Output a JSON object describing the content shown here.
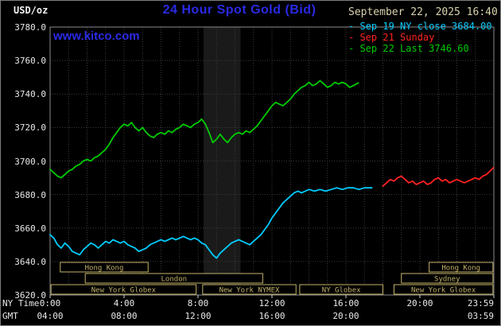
{
  "header": {
    "units_label": "USD/oz",
    "title": "24 Hour Spot Gold (Bid)",
    "datetime": "September 22, 2025 16:40",
    "watermark": "www.kitco.com",
    "legend_dash": "-"
  },
  "axes": {
    "ny_time_label": "NY Time",
    "gmt_label": "GMT"
  },
  "colors": {
    "title_blue": "#2a2ae6",
    "kitco_blue": "#2a2ae6",
    "date_tan": "#d9d2ae",
    "session_tan": "#c3b269",
    "grid": "#3d3d3d",
    "plot_border": "#8c8c8c",
    "band": "#1a1a1a",
    "axis_text": "#e9e9e9",
    "tick": "#cfcfcf",
    "background": "#000000"
  },
  "chart_data": {
    "type": "line",
    "title": "24 Hour Spot Gold (Bid)",
    "ylabel": "USD/oz",
    "x_unit": "hours, NY Time",
    "xlim": [
      0,
      24
    ],
    "ylim": [
      3620,
      3780
    ],
    "grid": true,
    "legend_position": "top-right",
    "y_ticks": [
      {
        "value": 3780,
        "label": "3780.0"
      },
      {
        "value": 3760,
        "label": "3760.0"
      },
      {
        "value": 3740,
        "label": "3740.0"
      },
      {
        "value": 3720,
        "label": "3720.0"
      },
      {
        "value": 3700,
        "label": "3700.0"
      },
      {
        "value": 3680,
        "label": "3680.0"
      },
      {
        "value": 3660,
        "label": "3660.0"
      },
      {
        "value": 3640,
        "label": "3640.0"
      },
      {
        "value": 3620,
        "label": "3620.0"
      }
    ],
    "x_ticks": [
      {
        "hour": 0,
        "ny": "0:00",
        "gmt": "04:00"
      },
      {
        "hour": 4,
        "ny": "4:00",
        "gmt": "08:00"
      },
      {
        "hour": 8,
        "ny": "8:00",
        "gmt": "12:00"
      },
      {
        "hour": 12,
        "ny": "12:00",
        "gmt": "16:00"
      },
      {
        "hour": 16,
        "ny": "16:00",
        "gmt": "20:00"
      },
      {
        "hour": 20,
        "ny": "20:00",
        "gmt": null
      },
      {
        "hour": 24,
        "ny": "23:59",
        "gmt": "03:59"
      }
    ],
    "highlight_band": {
      "x0": 8.3,
      "x1": 10.3
    },
    "sessions": [
      {
        "row": 0,
        "label": "Hong Kong",
        "x0": 0.55,
        "x1": 5.3
      },
      {
        "row": 0,
        "label": "Hong Kong",
        "x0": 20.5,
        "x1": 23.95
      },
      {
        "row": 1,
        "label": "London",
        "x0": 1.9,
        "x1": 11.5
      },
      {
        "row": 1,
        "label": "Sydney",
        "x0": 19.0,
        "x1": 23.95
      },
      {
        "row": 2,
        "label": "New York Globex",
        "x0": 0.05,
        "x1": 7.9
      },
      {
        "row": 2,
        "label": "New York NYMEX",
        "x0": 8.25,
        "x1": 13.3
      },
      {
        "row": 2,
        "label": "NY Globex",
        "x0": 13.5,
        "x1": 18.0
      },
      {
        "row": 2,
        "label": "New York Globex",
        "x0": 18.6,
        "x1": 23.95
      }
    ],
    "series": [
      {
        "id": "sep19",
        "name": "Sep 19 NY close 3684.00",
        "color": "#00ccff",
        "close_value": 3684.0,
        "points": [
          [
            0,
            3656
          ],
          [
            0.2,
            3654
          ],
          [
            0.4,
            3650
          ],
          [
            0.6,
            3648
          ],
          [
            0.8,
            3651
          ],
          [
            1,
            3649
          ],
          [
            1.2,
            3646
          ],
          [
            1.4,
            3645
          ],
          [
            1.6,
            3644
          ],
          [
            1.8,
            3647
          ],
          [
            2,
            3649
          ],
          [
            2.2,
            3651
          ],
          [
            2.4,
            3650
          ],
          [
            2.6,
            3648
          ],
          [
            2.8,
            3650
          ],
          [
            3,
            3652
          ],
          [
            3.2,
            3651
          ],
          [
            3.4,
            3653
          ],
          [
            3.6,
            3652
          ],
          [
            3.8,
            3651
          ],
          [
            4,
            3652
          ],
          [
            4.2,
            3650
          ],
          [
            4.4,
            3649
          ],
          [
            4.6,
            3648
          ],
          [
            4.8,
            3646
          ],
          [
            5,
            3647
          ],
          [
            5.2,
            3648
          ],
          [
            5.4,
            3650
          ],
          [
            5.6,
            3651
          ],
          [
            5.8,
            3652
          ],
          [
            6,
            3653
          ],
          [
            6.2,
            3652
          ],
          [
            6.4,
            3653
          ],
          [
            6.6,
            3654
          ],
          [
            6.8,
            3653
          ],
          [
            7,
            3654
          ],
          [
            7.2,
            3655
          ],
          [
            7.4,
            3654
          ],
          [
            7.6,
            3653
          ],
          [
            7.8,
            3654
          ],
          [
            8,
            3653
          ],
          [
            8.2,
            3651
          ],
          [
            8.4,
            3650
          ],
          [
            8.6,
            3647
          ],
          [
            8.8,
            3644
          ],
          [
            9,
            3642
          ],
          [
            9.2,
            3645
          ],
          [
            9.4,
            3647
          ],
          [
            9.6,
            3649
          ],
          [
            9.8,
            3651
          ],
          [
            10,
            3652
          ],
          [
            10.2,
            3653
          ],
          [
            10.4,
            3652
          ],
          [
            10.6,
            3651
          ],
          [
            10.8,
            3650
          ],
          [
            11,
            3652
          ],
          [
            11.2,
            3654
          ],
          [
            11.4,
            3656
          ],
          [
            11.6,
            3659
          ],
          [
            11.8,
            3662
          ],
          [
            12,
            3666
          ],
          [
            12.2,
            3669
          ],
          [
            12.4,
            3672
          ],
          [
            12.6,
            3675
          ],
          [
            12.8,
            3677
          ],
          [
            13,
            3679
          ],
          [
            13.2,
            3681
          ],
          [
            13.4,
            3682
          ],
          [
            13.6,
            3681
          ],
          [
            13.8,
            3682
          ],
          [
            14,
            3683
          ],
          [
            14.3,
            3682
          ],
          [
            14.6,
            3683
          ],
          [
            14.9,
            3682
          ],
          [
            15.2,
            3683
          ],
          [
            15.5,
            3684
          ],
          [
            15.8,
            3683
          ],
          [
            16.1,
            3684
          ],
          [
            16.4,
            3684
          ],
          [
            16.7,
            3683
          ],
          [
            17,
            3684
          ],
          [
            17.4,
            3684
          ]
        ]
      },
      {
        "id": "sep21",
        "name": "Sep 21 Sunday",
        "color": "#ff2222",
        "points": [
          [
            18,
            3685
          ],
          [
            18.2,
            3687
          ],
          [
            18.4,
            3689
          ],
          [
            18.6,
            3688
          ],
          [
            18.8,
            3690
          ],
          [
            19,
            3691
          ],
          [
            19.2,
            3689
          ],
          [
            19.4,
            3687
          ],
          [
            19.6,
            3688
          ],
          [
            19.8,
            3686
          ],
          [
            20,
            3687
          ],
          [
            20.2,
            3688
          ],
          [
            20.4,
            3686
          ],
          [
            20.6,
            3687
          ],
          [
            20.8,
            3689
          ],
          [
            21,
            3690
          ],
          [
            21.2,
            3688
          ],
          [
            21.4,
            3689
          ],
          [
            21.6,
            3687
          ],
          [
            21.8,
            3688
          ],
          [
            22,
            3689
          ],
          [
            22.2,
            3688
          ],
          [
            22.4,
            3687
          ],
          [
            22.6,
            3688
          ],
          [
            22.8,
            3689
          ],
          [
            23,
            3690
          ],
          [
            23.2,
            3689
          ],
          [
            23.4,
            3691
          ],
          [
            23.6,
            3692
          ],
          [
            23.8,
            3694
          ],
          [
            23.98,
            3696
          ]
        ]
      },
      {
        "id": "sep22",
        "name": "Sep 22 Last 3746.60",
        "color": "#00cc00",
        "last_value": 3746.6,
        "points": [
          [
            0,
            3695
          ],
          [
            0.2,
            3693
          ],
          [
            0.4,
            3691
          ],
          [
            0.6,
            3690
          ],
          [
            0.8,
            3692
          ],
          [
            1,
            3694
          ],
          [
            1.2,
            3695
          ],
          [
            1.4,
            3697
          ],
          [
            1.6,
            3698
          ],
          [
            1.8,
            3700
          ],
          [
            2,
            3701
          ],
          [
            2.2,
            3700
          ],
          [
            2.4,
            3702
          ],
          [
            2.6,
            3703
          ],
          [
            2.8,
            3705
          ],
          [
            3,
            3707
          ],
          [
            3.2,
            3710
          ],
          [
            3.4,
            3714
          ],
          [
            3.6,
            3717
          ],
          [
            3.8,
            3720
          ],
          [
            4,
            3722
          ],
          [
            4.2,
            3721
          ],
          [
            4.4,
            3723
          ],
          [
            4.6,
            3720
          ],
          [
            4.8,
            3718
          ],
          [
            5,
            3720
          ],
          [
            5.2,
            3717
          ],
          [
            5.4,
            3715
          ],
          [
            5.6,
            3714
          ],
          [
            5.8,
            3716
          ],
          [
            6,
            3717
          ],
          [
            6.2,
            3716
          ],
          [
            6.4,
            3718
          ],
          [
            6.6,
            3717
          ],
          [
            6.8,
            3719
          ],
          [
            7,
            3720
          ],
          [
            7.2,
            3722
          ],
          [
            7.4,
            3721
          ],
          [
            7.6,
            3720
          ],
          [
            7.8,
            3722
          ],
          [
            8,
            3723
          ],
          [
            8.2,
            3725
          ],
          [
            8.4,
            3722
          ],
          [
            8.6,
            3717
          ],
          [
            8.8,
            3711
          ],
          [
            9,
            3713
          ],
          [
            9.2,
            3716
          ],
          [
            9.4,
            3713
          ],
          [
            9.6,
            3711
          ],
          [
            9.8,
            3714
          ],
          [
            10,
            3716
          ],
          [
            10.2,
            3717
          ],
          [
            10.4,
            3716
          ],
          [
            10.6,
            3718
          ],
          [
            10.8,
            3717
          ],
          [
            11,
            3719
          ],
          [
            11.2,
            3721
          ],
          [
            11.4,
            3724
          ],
          [
            11.6,
            3727
          ],
          [
            11.8,
            3730
          ],
          [
            12,
            3733
          ],
          [
            12.2,
            3735
          ],
          [
            12.4,
            3734
          ],
          [
            12.6,
            3733
          ],
          [
            12.8,
            3735
          ],
          [
            13,
            3737
          ],
          [
            13.2,
            3740
          ],
          [
            13.4,
            3742
          ],
          [
            13.6,
            3744
          ],
          [
            13.8,
            3745
          ],
          [
            14,
            3747
          ],
          [
            14.2,
            3745
          ],
          [
            14.4,
            3746
          ],
          [
            14.6,
            3748
          ],
          [
            14.8,
            3746
          ],
          [
            15,
            3744
          ],
          [
            15.2,
            3745
          ],
          [
            15.4,
            3747
          ],
          [
            15.6,
            3746
          ],
          [
            15.8,
            3747
          ],
          [
            16,
            3746
          ],
          [
            16.2,
            3744
          ],
          [
            16.4,
            3745
          ],
          [
            16.67,
            3746.6
          ]
        ]
      }
    ]
  }
}
